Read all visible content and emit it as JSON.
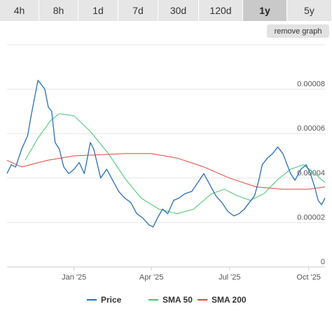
{
  "ranges": [
    {
      "label": "4h",
      "active": false
    },
    {
      "label": "8h",
      "active": false
    },
    {
      "label": "1d",
      "active": false
    },
    {
      "label": "7d",
      "active": false
    },
    {
      "label": "30d",
      "active": false
    },
    {
      "label": "120d",
      "active": false
    },
    {
      "label": "1y",
      "active": true
    },
    {
      "label": "5y",
      "active": false
    }
  ],
  "remove_graph_label": "remove graph",
  "colors": {
    "price": "#2a6fb0",
    "sma50": "#43c46c",
    "sma200": "#e0463c",
    "grid": "#e6e6e6"
  },
  "chart_data": {
    "type": "line",
    "x_ticks": [
      "Jan '25",
      "Apr '25",
      "Jul '25",
      "Oct '25"
    ],
    "x_tick_dates": [
      "2025-01-01",
      "2025-04-01",
      "2025-07-01",
      "2025-10-01"
    ],
    "x_range": [
      "2024-10-15",
      "2025-10-20"
    ],
    "y_ticks": [
      0,
      2e-05,
      4e-05,
      6e-05,
      8e-05
    ],
    "y_tick_labels": [
      "0",
      "0.00002",
      "0.00004",
      "0.00006",
      "0.00008"
    ],
    "ylim": [
      0,
      0.0001
    ],
    "legend_position": "bottom",
    "series": [
      {
        "name": "Price",
        "points": [
          [
            "2024-10-15",
            4.2e-05
          ],
          [
            "2024-10-20",
            4.6e-05
          ],
          [
            "2024-10-25",
            4.5e-05
          ],
          [
            "2024-11-01",
            5.3e-05
          ],
          [
            "2024-11-08",
            5.9e-05
          ],
          [
            "2024-11-12",
            6.8e-05
          ],
          [
            "2024-11-16",
            7.6e-05
          ],
          [
            "2024-11-20",
            8.4e-05
          ],
          [
            "2024-11-24",
            8.2e-05
          ],
          [
            "2024-11-28",
            8e-05
          ],
          [
            "2024-12-02",
            7.2e-05
          ],
          [
            "2024-12-06",
            7e-05
          ],
          [
            "2024-12-10",
            5.6e-05
          ],
          [
            "2024-12-15",
            5.3e-05
          ],
          [
            "2024-12-20",
            4.5e-05
          ],
          [
            "2024-12-26",
            4.2e-05
          ],
          [
            "2025-01-01",
            4.4e-05
          ],
          [
            "2025-01-07",
            4.7e-05
          ],
          [
            "2025-01-13",
            4.2e-05
          ],
          [
            "2025-01-20",
            5.6e-05
          ],
          [
            "2025-01-24",
            5.3e-05
          ],
          [
            "2025-02-01",
            4e-05
          ],
          [
            "2025-02-08",
            4.4e-05
          ],
          [
            "2025-02-15",
            3.9e-05
          ],
          [
            "2025-02-22",
            3.4e-05
          ],
          [
            "2025-03-01",
            3.1e-05
          ],
          [
            "2025-03-08",
            2.9e-05
          ],
          [
            "2025-03-15",
            2.4e-05
          ],
          [
            "2025-03-22",
            2.2e-05
          ],
          [
            "2025-03-29",
            1.9e-05
          ],
          [
            "2025-04-03",
            1.8e-05
          ],
          [
            "2025-04-08",
            2.2e-05
          ],
          [
            "2025-04-14",
            2.6e-05
          ],
          [
            "2025-04-20",
            2.4e-05
          ],
          [
            "2025-04-27",
            3e-05
          ],
          [
            "2025-05-03",
            3.1e-05
          ],
          [
            "2025-05-10",
            3.3e-05
          ],
          [
            "2025-05-18",
            3.4e-05
          ],
          [
            "2025-05-25",
            3.8e-05
          ],
          [
            "2025-06-01",
            4.2e-05
          ],
          [
            "2025-06-08",
            3.7e-05
          ],
          [
            "2025-06-15",
            3.2e-05
          ],
          [
            "2025-06-22",
            2.9e-05
          ],
          [
            "2025-06-29",
            2.5e-05
          ],
          [
            "2025-07-06",
            2.3e-05
          ],
          [
            "2025-07-12",
            2.4e-05
          ],
          [
            "2025-07-18",
            2.6e-05
          ],
          [
            "2025-07-24",
            2.9e-05
          ],
          [
            "2025-07-30",
            3.2e-05
          ],
          [
            "2025-08-04",
            3.9e-05
          ],
          [
            "2025-08-08",
            4.6e-05
          ],
          [
            "2025-08-14",
            4.9e-05
          ],
          [
            "2025-08-20",
            5.1e-05
          ],
          [
            "2025-08-26",
            5.4e-05
          ],
          [
            "2025-09-01",
            5.1e-05
          ],
          [
            "2025-09-06",
            4.6e-05
          ],
          [
            "2025-09-10",
            4.2e-05
          ],
          [
            "2025-09-15",
            3.9e-05
          ],
          [
            "2025-09-22",
            4.4e-05
          ],
          [
            "2025-09-28",
            4.6e-05
          ],
          [
            "2025-10-03",
            4.2e-05
          ],
          [
            "2025-10-08",
            3.6e-05
          ],
          [
            "2025-10-12",
            3e-05
          ],
          [
            "2025-10-16",
            2.8e-05
          ],
          [
            "2025-10-20",
            3.1e-05
          ]
        ]
      },
      {
        "name": "SMA 50",
        "points": [
          [
            "2024-11-05",
            4.8e-05
          ],
          [
            "2024-11-20",
            5.8e-05
          ],
          [
            "2024-12-05",
            6.6e-05
          ],
          [
            "2024-12-15",
            6.9e-05
          ],
          [
            "2025-01-01",
            6.8e-05
          ],
          [
            "2025-01-20",
            6.1e-05
          ],
          [
            "2025-02-10",
            5.1e-05
          ],
          [
            "2025-03-01",
            4e-05
          ],
          [
            "2025-03-20",
            3.1e-05
          ],
          [
            "2025-04-10",
            2.6e-05
          ],
          [
            "2025-05-01",
            2.4e-05
          ],
          [
            "2025-05-20",
            2.6e-05
          ],
          [
            "2025-06-10",
            3.3e-05
          ],
          [
            "2025-06-25",
            3.5e-05
          ],
          [
            "2025-07-10",
            3.2e-05
          ],
          [
            "2025-07-25",
            3e-05
          ],
          [
            "2025-08-10",
            3.3e-05
          ],
          [
            "2025-08-25",
            3.9e-05
          ],
          [
            "2025-09-10",
            4.4e-05
          ],
          [
            "2025-09-25",
            4.6e-05
          ],
          [
            "2025-10-05",
            4.3e-05
          ],
          [
            "2025-10-20",
            3.8e-05
          ]
        ]
      },
      {
        "name": "SMA 200",
        "points": [
          [
            "2024-10-15",
            4.8e-05
          ],
          [
            "2024-11-01",
            4.5e-05
          ],
          [
            "2024-12-01",
            4.8e-05
          ],
          [
            "2025-01-01",
            5e-05
          ],
          [
            "2025-02-01",
            5.05e-05
          ],
          [
            "2025-03-01",
            5.1e-05
          ],
          [
            "2025-04-01",
            5.1e-05
          ],
          [
            "2025-05-01",
            4.9e-05
          ],
          [
            "2025-06-01",
            4.5e-05
          ],
          [
            "2025-07-01",
            4e-05
          ],
          [
            "2025-08-01",
            3.6e-05
          ],
          [
            "2025-09-01",
            3.5e-05
          ],
          [
            "2025-10-01",
            3.5e-05
          ],
          [
            "2025-10-20",
            3.6e-05
          ]
        ]
      }
    ]
  }
}
